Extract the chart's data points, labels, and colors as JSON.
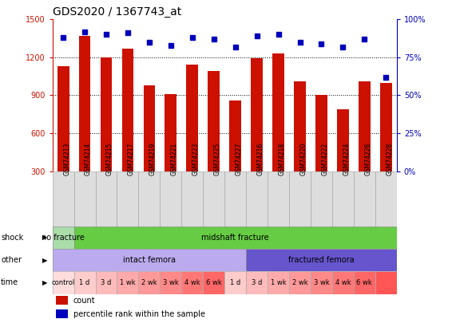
{
  "title": "GDS2020 / 1367743_at",
  "samples": [
    "GSM74213",
    "GSM74214",
    "GSM74215",
    "GSM74217",
    "GSM74219",
    "GSM74221",
    "GSM74223",
    "GSM74225",
    "GSM74227",
    "GSM74216",
    "GSM74218",
    "GSM74220",
    "GSM74222",
    "GSM74224",
    "GSM74226",
    "GSM74228"
  ],
  "counts": [
    1130,
    1370,
    1200,
    1270,
    980,
    910,
    1140,
    1090,
    860,
    1190,
    1230,
    1010,
    900,
    790,
    1010,
    1000
  ],
  "percentiles": [
    88,
    92,
    90,
    91,
    85,
    83,
    88,
    87,
    82,
    89,
    90,
    85,
    84,
    82,
    87,
    62
  ],
  "ylim_left": [
    300,
    1500
  ],
  "ylim_right": [
    0,
    100
  ],
  "yticks_left": [
    300,
    600,
    900,
    1200,
    1500
  ],
  "yticks_right": [
    0,
    25,
    50,
    75,
    100
  ],
  "bar_color": "#cc1100",
  "dot_color": "#0000bb",
  "shock_groups": [
    {
      "text": "no fracture",
      "start": 0,
      "end": 1,
      "color": "#aaddaa"
    },
    {
      "text": "midshaft fracture",
      "start": 1,
      "end": 16,
      "color": "#66cc44"
    }
  ],
  "other_groups": [
    {
      "text": "intact femora",
      "start": 0,
      "end": 9,
      "color": "#bbaaee"
    },
    {
      "text": "fractured femora",
      "start": 9,
      "end": 16,
      "color": "#6655cc"
    }
  ],
  "time_cells": [
    {
      "text": "control",
      "start": 0,
      "end": 1,
      "color": "#ffdddd"
    },
    {
      "text": "1 d",
      "start": 1,
      "end": 2,
      "color": "#ffcccc"
    },
    {
      "text": "3 d",
      "start": 2,
      "end": 3,
      "color": "#ffbbbb"
    },
    {
      "text": "1 wk",
      "start": 3,
      "end": 4,
      "color": "#ffaaaa"
    },
    {
      "text": "2 wk",
      "start": 4,
      "end": 5,
      "color": "#ff9999"
    },
    {
      "text": "3 wk",
      "start": 5,
      "end": 6,
      "color": "#ff8888"
    },
    {
      "text": "4 wk",
      "start": 6,
      "end": 7,
      "color": "#ff7777"
    },
    {
      "text": "6 wk",
      "start": 7,
      "end": 8,
      "color": "#ff6666"
    },
    {
      "text": "1 d",
      "start": 8,
      "end": 9,
      "color": "#ffcccc"
    },
    {
      "text": "3 d",
      "start": 9,
      "end": 10,
      "color": "#ffbbbb"
    },
    {
      "text": "1 wk",
      "start": 10,
      "end": 11,
      "color": "#ffaaaa"
    },
    {
      "text": "2 wk",
      "start": 11,
      "end": 12,
      "color": "#ff9999"
    },
    {
      "text": "3 wk",
      "start": 12,
      "end": 13,
      "color": "#ff8888"
    },
    {
      "text": "4 wk",
      "start": 13,
      "end": 14,
      "color": "#ff7777"
    },
    {
      "text": "6 wk",
      "start": 14,
      "end": 15,
      "color": "#ff6666"
    },
    {
      "text": "",
      "start": 15,
      "end": 16,
      "color": "#ff5555"
    }
  ],
  "title_fontsize": 10,
  "tick_fontsize": 7,
  "sample_fontsize": 5.5,
  "row_fontsize": 7,
  "legend_fontsize": 7
}
